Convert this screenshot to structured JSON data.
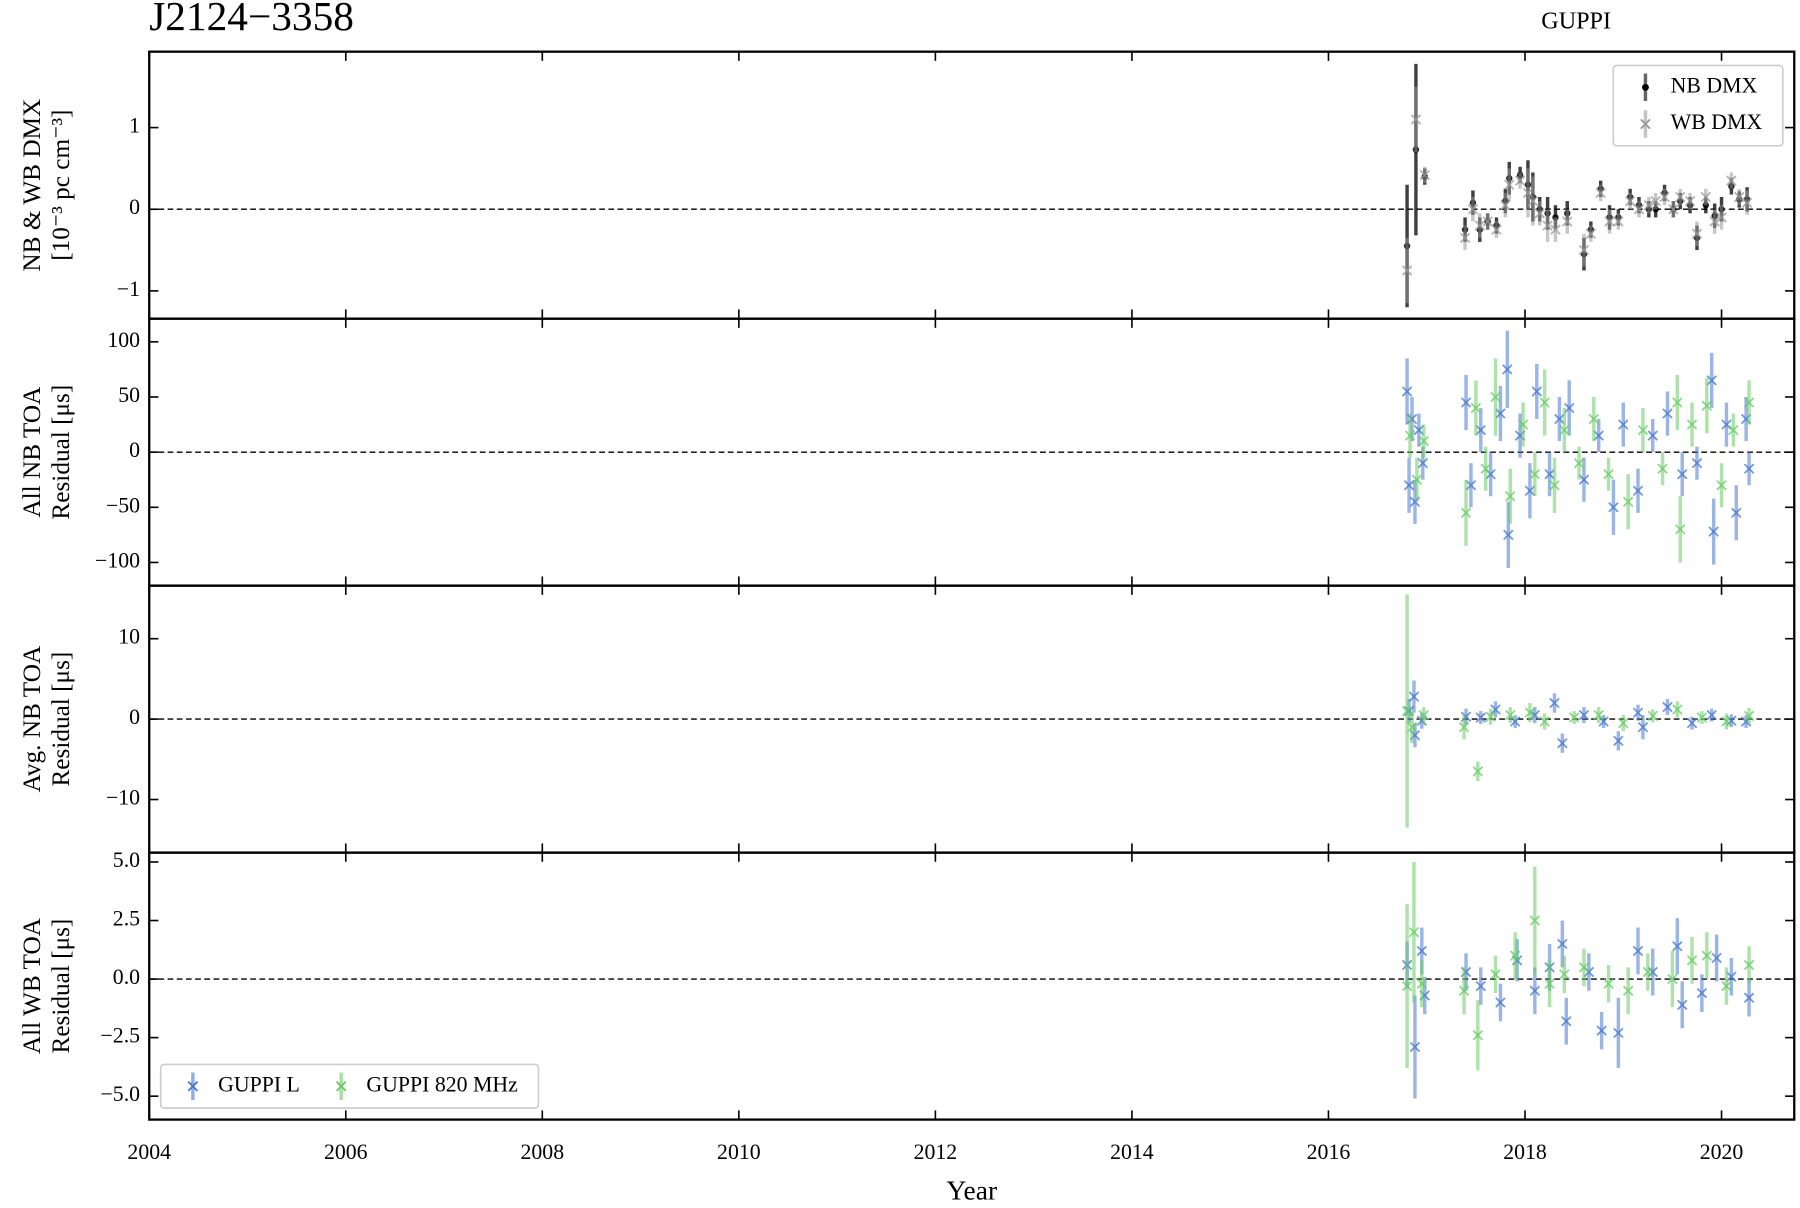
{
  "chart_data": [
    {
      "type": "errorbar",
      "title": "J2124−3358",
      "annotation": "GUPPI",
      "ylabel": [
        "NB & WB DMX",
        "[10⁻³ pc cm⁻³]"
      ],
      "ylim": [
        -1.34,
        1.93
      ],
      "yticks": [
        {
          "value": -1,
          "label": "−1"
        },
        0,
        1
      ],
      "legend": "upper right",
      "series": [
        {
          "name": "NB DMX",
          "color": "#000000",
          "marker": "o",
          "x": [
            2016.8,
            2016.89,
            2016.98,
            2017.39,
            2017.47,
            2017.54,
            2017.62,
            2017.71,
            2017.8,
            2017.84,
            2017.95,
            2018.03,
            2018.08,
            2018.15,
            2018.23,
            2018.31,
            2018.43,
            2018.6,
            2018.67,
            2018.77,
            2018.86,
            2018.95,
            2019.07,
            2019.16,
            2019.26,
            2019.33,
            2019.42,
            2019.51,
            2019.58,
            2019.68,
            2019.75,
            2019.84,
            2019.93,
            2020.0,
            2020.1,
            2020.18,
            2020.26
          ],
          "values": [
            -0.45,
            0.73,
            0.4,
            -0.25,
            0.08,
            -0.25,
            -0.15,
            -0.2,
            0.1,
            0.38,
            0.42,
            0.3,
            0.15,
            0.0,
            -0.05,
            -0.1,
            -0.05,
            -0.55,
            -0.25,
            0.25,
            -0.1,
            -0.1,
            0.15,
            0.05,
            0.0,
            0.0,
            0.2,
            0.0,
            0.1,
            0.05,
            -0.35,
            0.05,
            -0.08,
            0.0,
            0.28,
            0.12,
            0.12
          ],
          "errors": [
            0.75,
            1.05,
            0.1,
            0.15,
            0.15,
            0.15,
            0.1,
            0.1,
            0.15,
            0.2,
            0.1,
            0.3,
            0.3,
            0.15,
            0.2,
            0.15,
            0.15,
            0.2,
            0.1,
            0.1,
            0.15,
            0.1,
            0.1,
            0.1,
            0.1,
            0.1,
            0.1,
            0.1,
            0.1,
            0.1,
            0.15,
            0.1,
            0.15,
            0.15,
            0.1,
            0.1,
            0.15
          ]
        },
        {
          "name": "WB DMX",
          "color": "#999999",
          "marker": "x",
          "x": [
            2016.8,
            2016.89,
            2016.98,
            2017.39,
            2017.47,
            2017.54,
            2017.62,
            2017.71,
            2017.8,
            2017.84,
            2017.95,
            2018.03,
            2018.08,
            2018.15,
            2018.23,
            2018.31,
            2018.43,
            2018.6,
            2018.67,
            2018.77,
            2018.86,
            2018.95,
            2019.07,
            2019.16,
            2019.26,
            2019.33,
            2019.42,
            2019.51,
            2019.58,
            2019.68,
            2019.75,
            2019.84,
            2019.93,
            2020.0,
            2020.1,
            2020.18,
            2020.26
          ],
          "values": [
            -0.75,
            1.1,
            0.42,
            -0.35,
            0.0,
            -0.2,
            -0.15,
            -0.25,
            0.05,
            0.3,
            0.35,
            0.2,
            0.1,
            -0.05,
            -0.2,
            -0.25,
            -0.15,
            -0.5,
            -0.3,
            0.2,
            -0.15,
            -0.15,
            0.1,
            0.0,
            0.05,
            0.1,
            0.15,
            0.0,
            0.15,
            0.1,
            -0.3,
            0.15,
            -0.15,
            -0.1,
            0.35,
            0.15,
            0.08
          ],
          "errors": [
            0.4,
            0.4,
            0.1,
            0.15,
            0.15,
            0.15,
            0.1,
            0.1,
            0.15,
            0.2,
            0.1,
            0.3,
            0.3,
            0.15,
            0.2,
            0.15,
            0.15,
            0.2,
            0.1,
            0.1,
            0.15,
            0.1,
            0.1,
            0.1,
            0.1,
            0.1,
            0.1,
            0.1,
            0.1,
            0.1,
            0.15,
            0.1,
            0.15,
            0.15,
            0.1,
            0.1,
            0.15
          ]
        }
      ]
    },
    {
      "type": "errorbar",
      "ylabel": [
        "All NB TOA",
        "Residual [μs]"
      ],
      "ylim": [
        -121,
        121
      ],
      "yticks": [
        {
          "value": -100,
          "label": "−100"
        },
        {
          "value": -50,
          "label": "−50"
        },
        0,
        50,
        100
      ],
      "series": [
        {
          "color": "#4878cf",
          "marker": "x",
          "x": [
            2016.8,
            2016.82,
            2016.85,
            2016.88,
            2016.92,
            2016.96,
            2017.4,
            2017.45,
            2017.55,
            2017.65,
            2017.75,
            2017.82,
            2017.83,
            2017.95,
            2018.05,
            2018.12,
            2018.25,
            2018.35,
            2018.45,
            2018.6,
            2018.75,
            2018.9,
            2019.0,
            2019.15,
            2019.3,
            2019.45,
            2019.6,
            2019.75,
            2019.9,
            2019.92,
            2020.05,
            2020.15,
            2020.25,
            2020.28
          ],
          "values": [
            55,
            -30,
            30,
            -45,
            20,
            -10,
            45,
            -30,
            20,
            -20,
            35,
            75,
            -75,
            15,
            -35,
            55,
            -20,
            30,
            40,
            -25,
            15,
            -50,
            25,
            -35,
            15,
            35,
            -20,
            -10,
            65,
            -72,
            25,
            -55,
            30,
            -15
          ],
          "errors": [
            30,
            25,
            20,
            20,
            15,
            15,
            25,
            20,
            20,
            20,
            25,
            35,
            30,
            20,
            25,
            25,
            20,
            20,
            25,
            20,
            15,
            25,
            20,
            20,
            15,
            20,
            20,
            15,
            25,
            30,
            20,
            25,
            20,
            15
          ]
        },
        {
          "color": "#6acc65",
          "marker": "x",
          "x": [
            2016.83,
            2016.9,
            2016.97,
            2017.4,
            2017.5,
            2017.6,
            2017.7,
            2017.85,
            2017.98,
            2018.1,
            2018.2,
            2018.3,
            2018.4,
            2018.55,
            2018.7,
            2018.85,
            2019.05,
            2019.2,
            2019.4,
            2019.55,
            2019.58,
            2019.7,
            2019.85,
            2020.0,
            2020.12,
            2020.28
          ],
          "values": [
            15,
            -25,
            10,
            -55,
            40,
            -15,
            50,
            -40,
            25,
            -20,
            45,
            -30,
            20,
            -10,
            30,
            -20,
            -45,
            20,
            -15,
            45,
            -70,
            25,
            42,
            -30,
            20,
            45
          ],
          "errors": [
            20,
            20,
            15,
            30,
            25,
            20,
            35,
            25,
            20,
            20,
            30,
            25,
            20,
            15,
            20,
            15,
            25,
            20,
            15,
            25,
            30,
            20,
            25,
            20,
            15,
            20
          ]
        }
      ]
    },
    {
      "type": "errorbar",
      "ylabel": [
        "Avg. NB TOA",
        "Residual [μs]"
      ],
      "ylim": [
        -16.6,
        16.6
      ],
      "yticks": [
        {
          "value": -10,
          "label": "−10"
        },
        0,
        10
      ],
      "series": [
        {
          "color": "#4878cf",
          "marker": "x",
          "x": [
            2016.82,
            2016.87,
            2016.88,
            2016.95,
            2017.4,
            2017.55,
            2017.7,
            2017.9,
            2018.1,
            2018.3,
            2018.38,
            2018.6,
            2018.8,
            2018.95,
            2019.15,
            2019.2,
            2019.45,
            2019.7,
            2019.9,
            2020.1,
            2020.25
          ],
          "values": [
            1.0,
            2.8,
            -2.0,
            -0.2,
            0.3,
            0.2,
            1.2,
            -0.3,
            0.5,
            2.0,
            -3.0,
            0.5,
            -0.3,
            -2.7,
            0.8,
            -1.0,
            1.5,
            -0.5,
            0.5,
            -0.2,
            -0.3
          ],
          "errors": [
            1.5,
            2,
            1.5,
            1,
            1,
            0.8,
            1,
            0.8,
            1,
            1.2,
            1.2,
            1,
            0.8,
            1.2,
            1,
            1.5,
            1,
            0.8,
            0.8,
            0.8,
            0.8
          ]
        },
        {
          "color": "#6acc65",
          "marker": "x",
          "x": [
            2016.8,
            2016.85,
            2016.97,
            2017.38,
            2017.52,
            2017.65,
            2017.85,
            2018.05,
            2018.2,
            2018.5,
            2018.75,
            2019.0,
            2019.3,
            2019.55,
            2019.8,
            2020.05,
            2020.28
          ],
          "values": [
            1.0,
            -1.0,
            0.5,
            -1.0,
            -6.5,
            0.3,
            0.5,
            0.8,
            -0.3,
            0.2,
            0.5,
            -0.5,
            0.4,
            1.2,
            0.2,
            -0.3,
            0.4
          ],
          "errors": [
            14.5,
            2,
            1,
            1.5,
            1.2,
            1,
            1,
            1.2,
            1,
            0.8,
            1,
            1,
            0.8,
            1,
            0.8,
            1,
            1
          ]
        }
      ]
    },
    {
      "type": "errorbar",
      "ylabel": [
        "All WB TOA",
        "Residual [μs]"
      ],
      "xlabel": "Year",
      "ylim": [
        -6.0,
        5.4
      ],
      "yticks": [
        {
          "value": -5,
          "label": "−5.0"
        },
        {
          "value": -2.5,
          "label": "−2.5"
        },
        {
          "value": 0,
          "label": "0.0"
        },
        2.5,
        {
          "value": 5,
          "label": "5.0"
        }
      ],
      "xlim": [
        2004,
        2020.74
      ],
      "xticks": [
        2004,
        2006,
        2008,
        2010,
        2012,
        2014,
        2016,
        2018,
        2020
      ],
      "legend": "lower left",
      "legend_columns": 2,
      "series": [
        {
          "name": "GUPPI L",
          "color": "#4878cf",
          "marker": "x",
          "x": [
            2016.8,
            2016.88,
            2016.95,
            2016.98,
            2017.4,
            2017.55,
            2017.75,
            2017.92,
            2018.1,
            2018.25,
            2018.38,
            2018.42,
            2018.65,
            2018.78,
            2018.95,
            2019.15,
            2019.3,
            2019.55,
            2019.6,
            2019.8,
            2019.95,
            2020.1,
            2020.28
          ],
          "values": [
            0.6,
            -2.9,
            1.2,
            -0.7,
            0.3,
            -0.3,
            -1.0,
            0.8,
            -0.5,
            0.5,
            1.5,
            -1.8,
            0.3,
            -2.2,
            -2.3,
            1.2,
            0.3,
            1.4,
            -1.1,
            -0.6,
            0.9,
            0.1,
            -0.8
          ],
          "errors": [
            1.0,
            2.2,
            1.0,
            0.8,
            0.8,
            0.8,
            0.8,
            0.9,
            1,
            1,
            1,
            1,
            0.8,
            0.8,
            1.5,
            1,
            1,
            1.2,
            1,
            0.8,
            1,
            0.8,
            0.8
          ]
        },
        {
          "name": "GUPPI 820 MHz",
          "color": "#6acc65",
          "marker": "x",
          "x": [
            2016.8,
            2016.87,
            2016.95,
            2017.38,
            2017.52,
            2017.7,
            2017.9,
            2018.1,
            2018.25,
            2018.4,
            2018.6,
            2018.85,
            2019.05,
            2019.25,
            2019.5,
            2019.7,
            2019.85,
            2020.05,
            2020.28
          ],
          "values": [
            -0.3,
            2.0,
            -0.2,
            -0.5,
            -2.4,
            0.2,
            1.0,
            2.5,
            -0.2,
            0.2,
            0.5,
            -0.2,
            -0.5,
            0.3,
            0.0,
            0.8,
            1.0,
            -0.3,
            0.6
          ],
          "errors": [
            3.5,
            3.0,
            1,
            1,
            1.5,
            0.8,
            1,
            2.3,
            1,
            0.8,
            0.8,
            0.8,
            1,
            0.8,
            1.2,
            1,
            1,
            0.8,
            0.8
          ]
        }
      ]
    }
  ]
}
